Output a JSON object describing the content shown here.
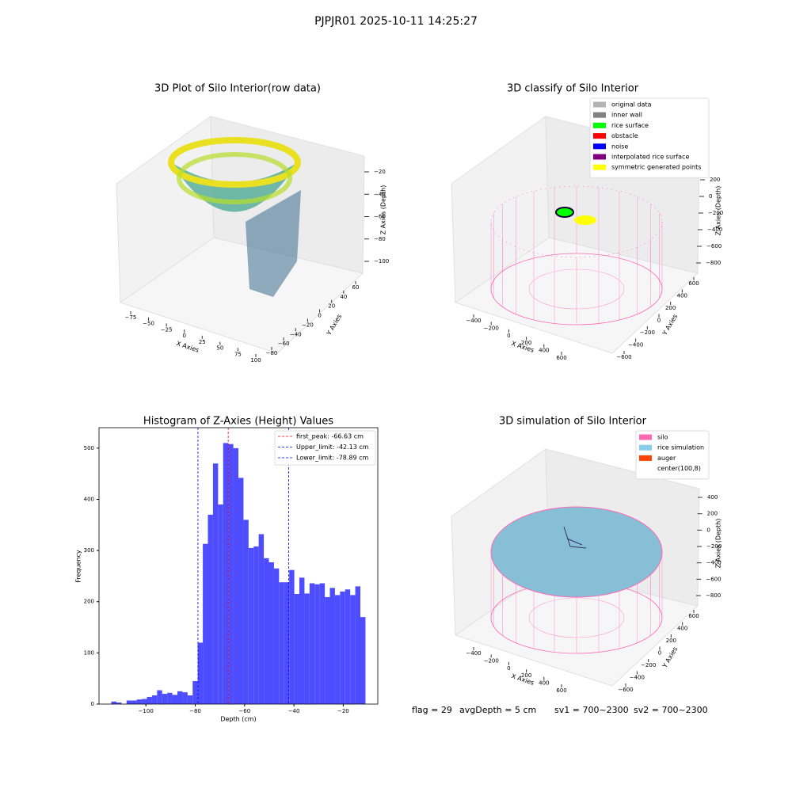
{
  "title": "PJPJR01 2025-10-11 14:25:27",
  "chart_data": [
    {
      "type": "scatter3d",
      "title": "3D Plot of Silo Interior(row data)",
      "xlabel": "X Axies",
      "ylabel": "Y Axies",
      "zlabel": "Z Axies (Depth)",
      "xticks": [
        {
          "value": -75,
          "label": "−75"
        },
        {
          "value": -50,
          "label": "−50"
        },
        {
          "value": -25,
          "label": "−25"
        },
        0,
        25,
        50,
        75,
        100
      ],
      "yticks": [
        {
          "value": -80,
          "label": "−80"
        },
        {
          "value": -60,
          "label": "−60"
        },
        {
          "value": -40,
          "label": "−40"
        },
        {
          "value": -20,
          "label": "−20"
        },
        0,
        20,
        40,
        60
      ],
      "zticks": [
        {
          "value": -100,
          "label": "−100"
        },
        {
          "value": -80,
          "label": "−80"
        },
        {
          "value": -60,
          "label": "−60"
        },
        {
          "value": -40,
          "label": "−40"
        },
        {
          "value": -20,
          "label": "−20"
        }
      ]
    },
    {
      "type": "scatter3d",
      "title": "3D classify of Silo Interior",
      "xlabel": "X Axies",
      "ylabel": "Y Axies",
      "zlabel": "Z Axies (Depth)",
      "xticks": [
        {
          "value": -400,
          "label": "−400"
        },
        {
          "value": -200,
          "label": "−200"
        },
        0,
        200,
        400,
        600
      ],
      "yticks": [
        {
          "value": -600,
          "label": "−600"
        },
        {
          "value": -400,
          "label": "−400"
        },
        {
          "value": -200,
          "label": "−200"
        },
        0,
        200,
        400,
        600
      ],
      "zticks": [
        {
          "value": -800,
          "label": "−800"
        },
        {
          "value": -600,
          "label": "−600"
        },
        {
          "value": -400,
          "label": "−400"
        },
        {
          "value": -200,
          "label": "−200"
        },
        0,
        200
      ],
      "legend": [
        {
          "name": "original data",
          "color": "#b3b3b3"
        },
        {
          "name": "inner wall",
          "color": "#808080"
        },
        {
          "name": "rice surface",
          "color": "#00ff00"
        },
        {
          "name": "obstacle",
          "color": "#ff0000"
        },
        {
          "name": "noise",
          "color": "#0000ff"
        },
        {
          "name": "interpolated rice surface",
          "color": "#800080"
        },
        {
          "name": "symmetric generated points",
          "color": "#ffff00"
        }
      ]
    },
    {
      "type": "histogram",
      "title": "Histogram of Z-Axies (Height) Values",
      "xlabel": "Depth (cm)",
      "ylabel": "Frequency",
      "color": "#4d4dff",
      "bins": [
        -114,
        -111.94,
        -109.88,
        -107.82,
        -105.76,
        -103.7,
        -101.64,
        -99.58,
        -97.52,
        -95.46,
        -93.4,
        -91.34,
        -89.28,
        -87.22,
        -85.16,
        -83.1,
        -81.04,
        -78.98,
        -76.92,
        -74.86,
        -72.8,
        -70.74,
        -68.68,
        -66.62,
        -64.56,
        -62.5,
        -60.44,
        -58.38,
        -56.32,
        -54.26,
        -52.2,
        -50.14,
        -48.08,
        -46.02,
        -43.96,
        -41.9,
        -39.84,
        -37.78,
        -35.72,
        -33.66,
        -31.6,
        -29.54,
        -27.48,
        -25.42,
        -23.36,
        -21.3,
        -19.24,
        -17.18,
        -15.12,
        -13.06,
        -11
      ],
      "counts": [
        5,
        3,
        0,
        7,
        7,
        9,
        10,
        14,
        17,
        27,
        20,
        22,
        18,
        25,
        23,
        17,
        45,
        120,
        313,
        370,
        470,
        390,
        510,
        508,
        500,
        442,
        360,
        305,
        308,
        332,
        285,
        277,
        265,
        238,
        238,
        262,
        215,
        247,
        216,
        236,
        234,
        236,
        209,
        227,
        213,
        220,
        224,
        213,
        230,
        170
      ],
      "xlim": [
        -119,
        -6
      ],
      "ylim": [
        0,
        540
      ],
      "xticks": [
        {
          "value": -100,
          "label": "−100"
        },
        {
          "value": -80,
          "label": "−80"
        },
        {
          "value": -60,
          "label": "−60"
        },
        {
          "value": -40,
          "label": "−40"
        },
        {
          "value": -20,
          "label": "−20"
        }
      ],
      "yticks": [
        0,
        100,
        200,
        300,
        400,
        500
      ],
      "vlines": [
        {
          "label": "first_peak: -66.63 cm",
          "value": -66.63,
          "color": "#ff0000"
        },
        {
          "label": "Upper_limit: -42.13 cm",
          "value": -42.13,
          "color": "#0000ff"
        },
        {
          "label": "Lower_limit: -78.89 cm",
          "value": -78.89,
          "color": "#0000ff"
        }
      ]
    },
    {
      "type": "scatter3d",
      "title": "3D simulation of Silo Interior",
      "xlabel": "X Axies",
      "ylabel": "Y Axies",
      "zlabel": "Z Axies (Depth)",
      "xticks": [
        {
          "value": -400,
          "label": "−400"
        },
        {
          "value": -200,
          "label": "−200"
        },
        0,
        200,
        400,
        600
      ],
      "yticks": [
        {
          "value": -600,
          "label": "−600"
        },
        {
          "value": -400,
          "label": "−400"
        },
        {
          "value": -200,
          "label": "−200"
        },
        0,
        200,
        400,
        600
      ],
      "zticks": [
        {
          "value": -800,
          "label": "−800"
        },
        {
          "value": -600,
          "label": "−600"
        },
        {
          "value": -400,
          "label": "−400"
        },
        {
          "value": -200,
          "label": "−200"
        },
        0,
        200,
        400
      ],
      "legend": [
        {
          "name": "silo",
          "color": "#ff69b4"
        },
        {
          "name": "rice simulation",
          "color": "#87ceeb"
        },
        {
          "name": "auger",
          "color": "#ff4500"
        },
        {
          "name": "center(100,8)",
          "color": "#ffffff"
        }
      ]
    }
  ],
  "footer": [
    "flag = 29",
    "avgDepth = 5 cm",
    "sv1 = 700~2300",
    "sv2 = 700~2300"
  ]
}
